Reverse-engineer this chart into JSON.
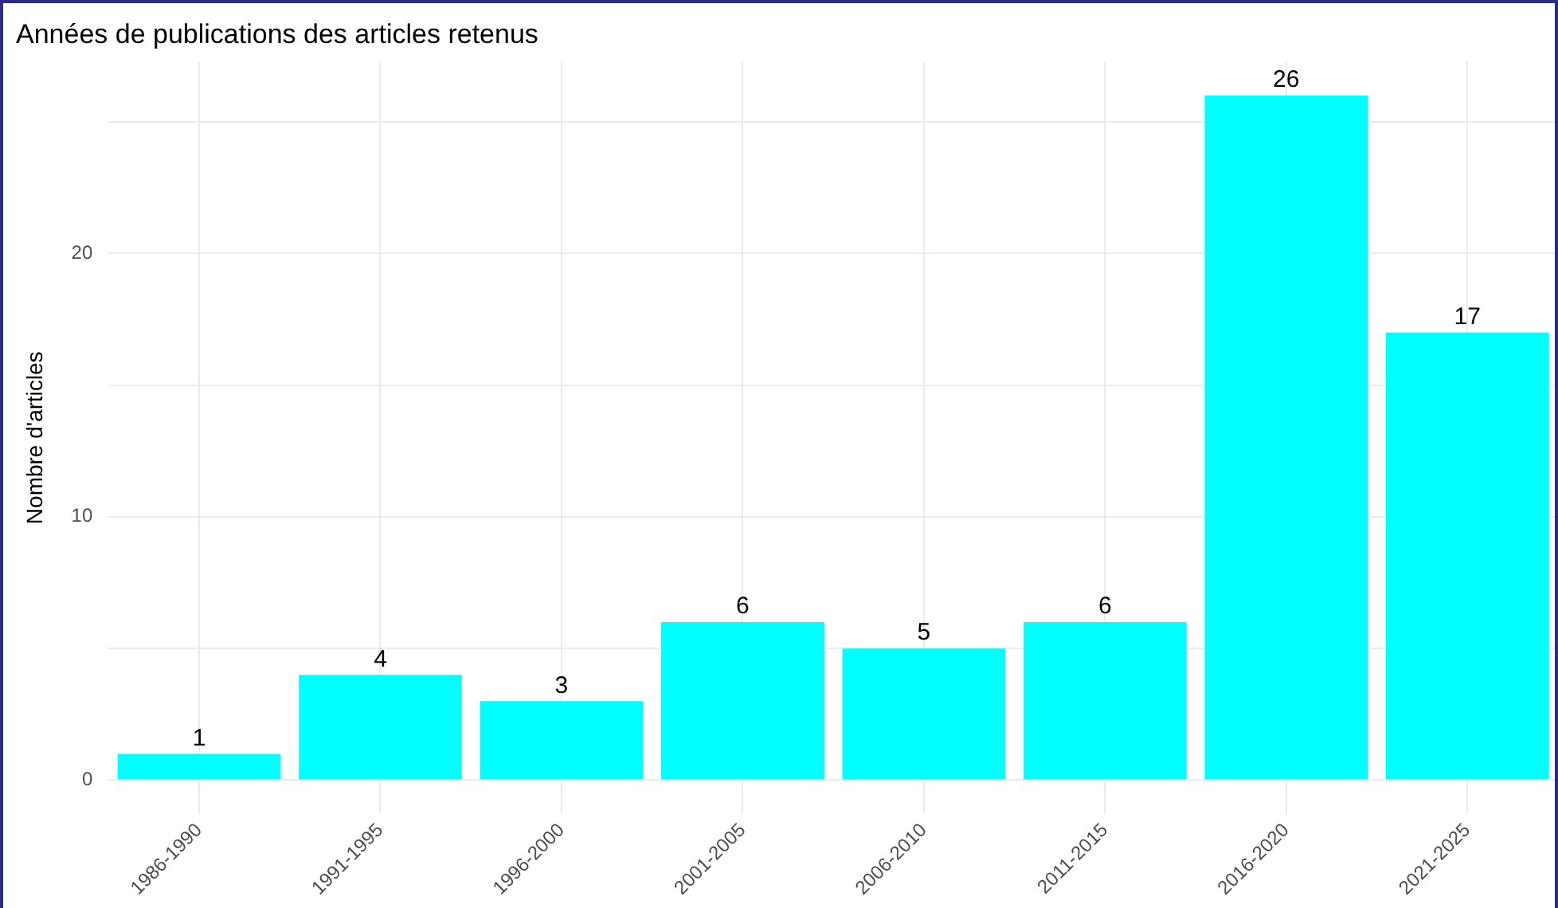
{
  "chart_data": {
    "type": "bar",
    "title": "Années de publications des articles retenus",
    "ylabel": "Nombre d'articles",
    "categories": [
      "1986-1990",
      "1991-1995",
      "1996-2000",
      "2001-2005",
      "2006-2010",
      "2011-2015",
      "2016-2020",
      "2021-2025"
    ],
    "values": [
      1,
      4,
      3,
      6,
      5,
      6,
      26,
      17
    ],
    "color": "#00ffff",
    "ylim": [
      -1.3,
      27.3
    ],
    "yticks": [
      0,
      {
        "value": 5,
        "label": null
      },
      10,
      {
        "value": 15,
        "label": null
      },
      20,
      {
        "value": 25,
        "label": null
      }
    ],
    "grid": true,
    "data_labels": true,
    "legend": false
  }
}
